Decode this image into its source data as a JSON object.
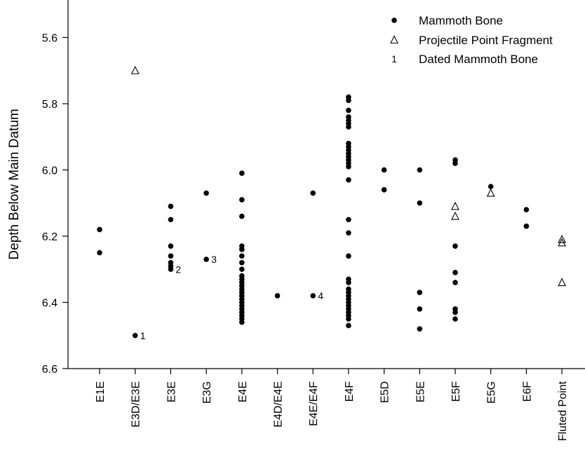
{
  "chart_data": {
    "type": "scatter",
    "ylabel": "Depth Below Main Datum",
    "xlabel": "",
    "ylim": [
      6.6,
      5.5
    ],
    "y_inverted": true,
    "yticks": [
      "5.6",
      "5.8",
      "6.0",
      "6.2",
      "6.4",
      "6.6"
    ],
    "categories": [
      "E1E",
      "E3D/E3E",
      "E3E",
      "E3G",
      "E4E",
      "E4D/E4E",
      "E4E/E4F",
      "E4F",
      "E5D",
      "E5E",
      "E5F",
      "E5G",
      "E6F",
      "Fluted Point"
    ],
    "legend_position": "top-right",
    "series": [
      {
        "name": "Mammoth Bone",
        "marker": "filled-circle",
        "points": [
          {
            "x": "E1E",
            "y": 6.18
          },
          {
            "x": "E1E",
            "y": 6.25
          },
          {
            "x": "E3D/E3E",
            "y": 6.5
          },
          {
            "x": "E3E",
            "y": 6.11
          },
          {
            "x": "E3E",
            "y": 6.15
          },
          {
            "x": "E3E",
            "y": 6.23
          },
          {
            "x": "E3E",
            "y": 6.26
          },
          {
            "x": "E3E",
            "y": 6.28
          },
          {
            "x": "E3E",
            "y": 6.29
          },
          {
            "x": "E3E",
            "y": 6.3
          },
          {
            "x": "E3G",
            "y": 6.07
          },
          {
            "x": "E3G",
            "y": 6.27
          },
          {
            "x": "E4E",
            "y": 6.01
          },
          {
            "x": "E4E",
            "y": 6.09
          },
          {
            "x": "E4E",
            "y": 6.14
          },
          {
            "x": "E4E",
            "y": 6.23
          },
          {
            "x": "E4E",
            "y": 6.24
          },
          {
            "x": "E4E",
            "y": 6.26
          },
          {
            "x": "E4E",
            "y": 6.28
          },
          {
            "x": "E4E",
            "y": 6.3
          },
          {
            "x": "E4E",
            "y": 6.32
          },
          {
            "x": "E4E",
            "y": 6.33
          },
          {
            "x": "E4E",
            "y": 6.34
          },
          {
            "x": "E4E",
            "y": 6.35
          },
          {
            "x": "E4E",
            "y": 6.36
          },
          {
            "x": "E4E",
            "y": 6.37
          },
          {
            "x": "E4E",
            "y": 6.38
          },
          {
            "x": "E4E",
            "y": 6.39
          },
          {
            "x": "E4E",
            "y": 6.4
          },
          {
            "x": "E4E",
            "y": 6.41
          },
          {
            "x": "E4E",
            "y": 6.42
          },
          {
            "x": "E4E",
            "y": 6.43
          },
          {
            "x": "E4E",
            "y": 6.44
          },
          {
            "x": "E4E",
            "y": 6.45
          },
          {
            "x": "E4E",
            "y": 6.46
          },
          {
            "x": "E4D/E4E",
            "y": 6.38
          },
          {
            "x": "E4E/E4F",
            "y": 6.07
          },
          {
            "x": "E4E/E4F",
            "y": 6.38
          },
          {
            "x": "E4F",
            "y": 5.78
          },
          {
            "x": "E4F",
            "y": 5.79
          },
          {
            "x": "E4F",
            "y": 5.82
          },
          {
            "x": "E4F",
            "y": 5.84
          },
          {
            "x": "E4F",
            "y": 5.85
          },
          {
            "x": "E4F",
            "y": 5.86
          },
          {
            "x": "E4F",
            "y": 5.87
          },
          {
            "x": "E4F",
            "y": 5.92
          },
          {
            "x": "E4F",
            "y": 5.93
          },
          {
            "x": "E4F",
            "y": 5.94
          },
          {
            "x": "E4F",
            "y": 5.95
          },
          {
            "x": "E4F",
            "y": 5.96
          },
          {
            "x": "E4F",
            "y": 5.97
          },
          {
            "x": "E4F",
            "y": 5.98
          },
          {
            "x": "E4F",
            "y": 5.99
          },
          {
            "x": "E4F",
            "y": 6.03
          },
          {
            "x": "E4F",
            "y": 6.15
          },
          {
            "x": "E4F",
            "y": 6.19
          },
          {
            "x": "E4F",
            "y": 6.26
          },
          {
            "x": "E4F",
            "y": 6.33
          },
          {
            "x": "E4F",
            "y": 6.34
          },
          {
            "x": "E4F",
            "y": 6.36
          },
          {
            "x": "E4F",
            "y": 6.37
          },
          {
            "x": "E4F",
            "y": 6.38
          },
          {
            "x": "E4F",
            "y": 6.39
          },
          {
            "x": "E4F",
            "y": 6.4
          },
          {
            "x": "E4F",
            "y": 6.41
          },
          {
            "x": "E4F",
            "y": 6.42
          },
          {
            "x": "E4F",
            "y": 6.43
          },
          {
            "x": "E4F",
            "y": 6.44
          },
          {
            "x": "E4F",
            "y": 6.45
          },
          {
            "x": "E4F",
            "y": 6.47
          },
          {
            "x": "E5D",
            "y": 6.0
          },
          {
            "x": "E5D",
            "y": 6.06
          },
          {
            "x": "E5E",
            "y": 6.0
          },
          {
            "x": "E5E",
            "y": 6.1
          },
          {
            "x": "E5E",
            "y": 6.37
          },
          {
            "x": "E5E",
            "y": 6.42
          },
          {
            "x": "E5E",
            "y": 6.48
          },
          {
            "x": "E5F",
            "y": 5.97
          },
          {
            "x": "E5F",
            "y": 5.98
          },
          {
            "x": "E5F",
            "y": 6.23
          },
          {
            "x": "E5F",
            "y": 6.31
          },
          {
            "x": "E5F",
            "y": 6.34
          },
          {
            "x": "E5F",
            "y": 6.42
          },
          {
            "x": "E5F",
            "y": 6.43
          },
          {
            "x": "E5F",
            "y": 6.45
          },
          {
            "x": "E5G",
            "y": 6.05
          },
          {
            "x": "E6F",
            "y": 6.12
          },
          {
            "x": "E6F",
            "y": 6.17
          }
        ]
      },
      {
        "name": "Projectile Point Fragment",
        "marker": "open-triangle",
        "points": [
          {
            "x": "E3D/E3E",
            "y": 5.7
          },
          {
            "x": "E5F",
            "y": 6.11
          },
          {
            "x": "E5F",
            "y": 6.14
          },
          {
            "x": "E5G",
            "y": 6.07
          },
          {
            "x": "Fluted Point",
            "y": 6.21
          },
          {
            "x": "Fluted Point",
            "y": 6.22
          },
          {
            "x": "Fluted Point",
            "y": 6.34
          }
        ]
      }
    ],
    "dated_bones": {
      "name": "Dated Mammoth Bone",
      "legend_symbol": "1",
      "labels": [
        {
          "text": "1",
          "x": "E3D/E3E",
          "y": 6.5
        },
        {
          "text": "2",
          "x": "E3E",
          "y": 6.3
        },
        {
          "text": "3",
          "x": "E3G",
          "y": 6.27
        },
        {
          "text": "4",
          "x": "E4E/E4F",
          "y": 6.38
        }
      ]
    }
  }
}
